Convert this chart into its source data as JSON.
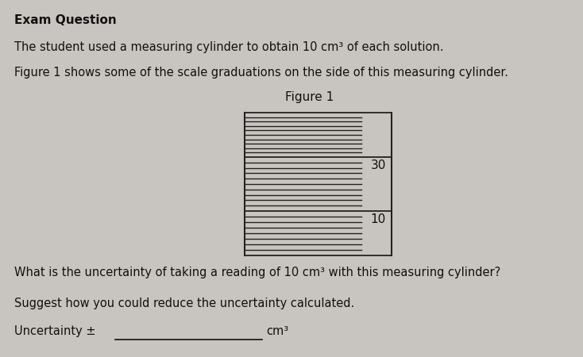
{
  "title": "Exam Question",
  "line1": "The student used a measuring cylinder to obtain 10 cm³ of each solution.",
  "line2": "Figure 1 shows some of the scale graduations on the side of this measuring cylinder.",
  "figure_label": "Figure 1",
  "question1": "What is the uncertainty of taking a reading of 10 cm³ with this measuring cylinder?",
  "question2": "Suggest how you could reduce the uncertainty calculated.",
  "uncertainty_label": "Uncertainty ±",
  "cm3_label": "cm³",
  "bg_color": "#c8c5c0",
  "text_color": "#111111",
  "tick_color": "#222222"
}
